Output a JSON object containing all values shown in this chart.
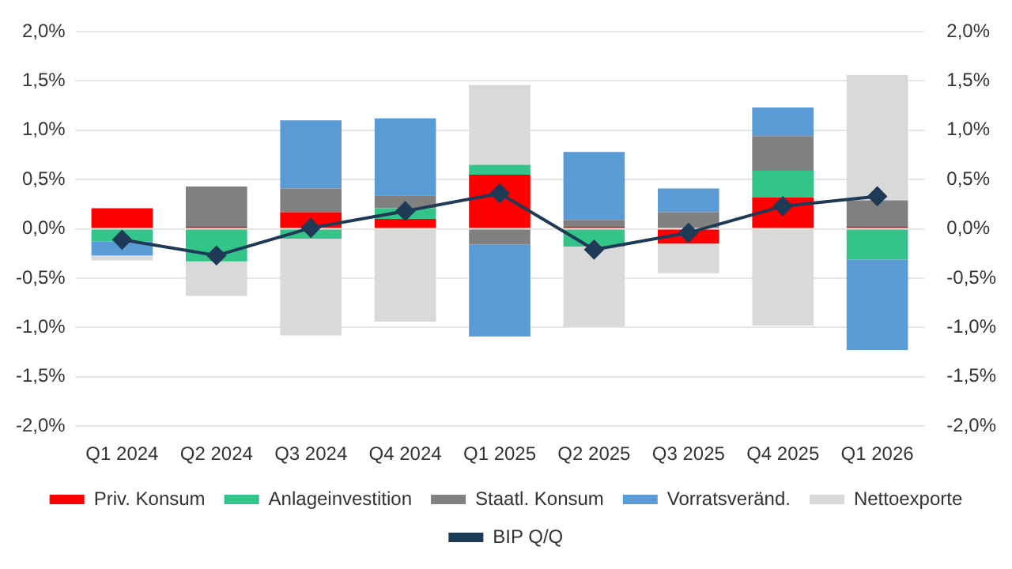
{
  "chart_data": {
    "type": "bar",
    "stacked": true,
    "categories": [
      "Q1 2024",
      "Q2 2024",
      "Q3 2024",
      "Q4 2024",
      "Q1 2025",
      "Q2 2025",
      "Q3 2025",
      "Q4 2025",
      "Q1 2026"
    ],
    "series": [
      {
        "name": "Priv. Konsum",
        "color": "#ff0000",
        "values": [
          0.21,
          0.02,
          0.17,
          0.1,
          0.55,
          0.02,
          -0.15,
          0.32,
          0.02
        ]
      },
      {
        "name": "Anlageinvestition",
        "color": "#33c48a",
        "values": [
          -0.13,
          -0.33,
          -0.1,
          0.11,
          0.1,
          -0.18,
          0,
          0.27,
          -0.31
        ]
      },
      {
        "name": "Staatl. Konsum",
        "color": "#808080",
        "values": [
          0,
          0.41,
          0.24,
          0.13,
          -0.16,
          0.07,
          0.17,
          0.35,
          0.27
        ]
      },
      {
        "name": "Vorratsveränd.",
        "color": "#5b9bd5",
        "values": [
          -0.14,
          0,
          0.69,
          0.78,
          -0.93,
          0.69,
          0.24,
          0.29,
          -0.92
        ]
      },
      {
        "name": "Nettoexporte",
        "color": "#d9d9d9",
        "values": [
          -0.05,
          -0.35,
          -0.98,
          -0.94,
          0.81,
          -0.81,
          -0.3,
          -0.98,
          1.27
        ]
      },
      {
        "name": "BIP Q/Q",
        "type": "line",
        "color": "#1f3a56",
        "marker": "diamond",
        "values": [
          -0.11,
          -0.27,
          0.01,
          0.18,
          0.36,
          -0.21,
          -0.04,
          0.23,
          0.33
        ]
      }
    ],
    "ylim": [
      -2,
      2
    ],
    "yticks": [
      {
        "value": -2,
        "label": "-2,0%"
      },
      {
        "value": -1.5,
        "label": "-1,5%"
      },
      {
        "value": -1,
        "label": "-1,0%"
      },
      {
        "value": -0.5,
        "label": "-0,5%"
      },
      {
        "value": 0,
        "label": "0,0%"
      },
      {
        "value": 0.5,
        "label": "0,5%"
      },
      {
        "value": 1,
        "label": "1,0%"
      },
      {
        "value": 1.5,
        "label": "1,5%"
      },
      {
        "value": 2,
        "label": "2,0%"
      }
    ],
    "y2lim": [
      -2,
      2
    ],
    "y2ticks": [
      {
        "value": -2,
        "label": "-2,0%"
      },
      {
        "value": -1.5,
        "label": "-1,5%"
      },
      {
        "value": -1,
        "label": "-1,0%"
      },
      {
        "value": -0.5,
        "label": "-0,5%"
      },
      {
        "value": 0,
        "label": "0,0%"
      },
      {
        "value": 0.5,
        "label": "0,5%"
      },
      {
        "value": 1,
        "label": "1,0%"
      },
      {
        "value": 1.5,
        "label": "1,5%"
      },
      {
        "value": 2,
        "label": "2,0%"
      }
    ],
    "grid": "y",
    "legend": "bottom"
  }
}
